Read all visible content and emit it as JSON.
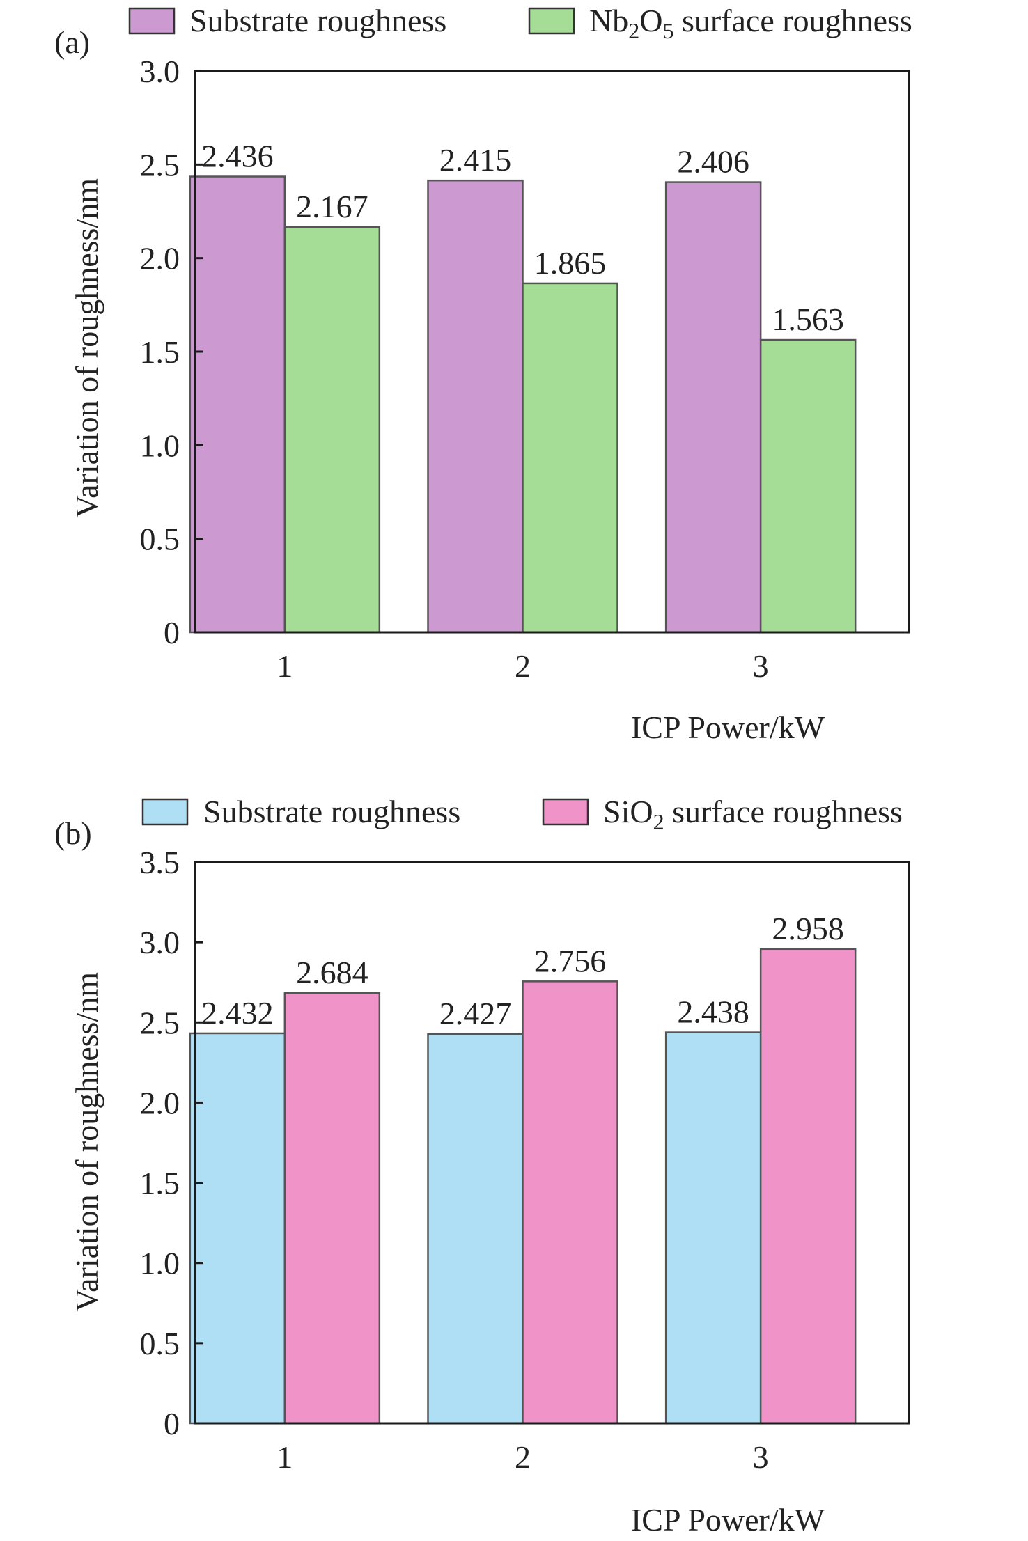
{
  "chart_data": [
    {
      "type": "bar",
      "panel_label": "(a)",
      "categories": [
        "1",
        "2",
        "3"
      ],
      "series": [
        {
          "name": "Substrate roughness",
          "values": [
            2.436,
            2.415,
            2.406
          ],
          "labels": [
            "2.436",
            "2.415",
            "2.406"
          ],
          "color": "#cc99d1"
        },
        {
          "name": "Nb2O5 surface roughness",
          "name_parts": [
            "Nb",
            "2",
            "O",
            "5",
            " surface roughness"
          ],
          "values": [
            2.167,
            1.865,
            1.563
          ],
          "labels": [
            "2.167",
            "1.865",
            "1.563"
          ],
          "color": "#a6dd96"
        }
      ],
      "xlabel": "ICP Power/kW",
      "ylabel": "Variation of roughness/nm",
      "ylim": [
        0,
        3.0
      ],
      "yticks": [
        0,
        0.5,
        1.0,
        1.5,
        2.0,
        2.5,
        3.0
      ],
      "ytick_labels": [
        "0",
        "0.5",
        "1.0",
        "1.5",
        "2.0",
        "2.5",
        "3.0"
      ],
      "grid": false,
      "legend_position": "top"
    },
    {
      "type": "bar",
      "panel_label": "(b)",
      "categories": [
        "1",
        "2",
        "3"
      ],
      "series": [
        {
          "name": "Substrate roughness",
          "values": [
            2.432,
            2.427,
            2.438
          ],
          "labels": [
            "2.432",
            "2.427",
            "2.438"
          ],
          "color": "#afdff5"
        },
        {
          "name": "SiO2 surface roughness",
          "name_parts": [
            "SiO",
            "2",
            " surface roughness"
          ],
          "values": [
            2.684,
            2.756,
            2.958
          ],
          "labels": [
            "2.684",
            "2.756",
            "2.958"
          ],
          "color": "#f093c9"
        }
      ],
      "xlabel": "ICP Power/kW",
      "ylabel": "Variation of roughness/nm",
      "ylim": [
        0,
        3.5
      ],
      "yticks": [
        0,
        0.5,
        1.0,
        1.5,
        2.0,
        2.5,
        3.0,
        3.5
      ],
      "ytick_labels": [
        "0",
        "0.5",
        "1.0",
        "1.5",
        "2.0",
        "2.5",
        "3.0",
        "3.5"
      ],
      "grid": false,
      "legend_position": "top"
    }
  ]
}
